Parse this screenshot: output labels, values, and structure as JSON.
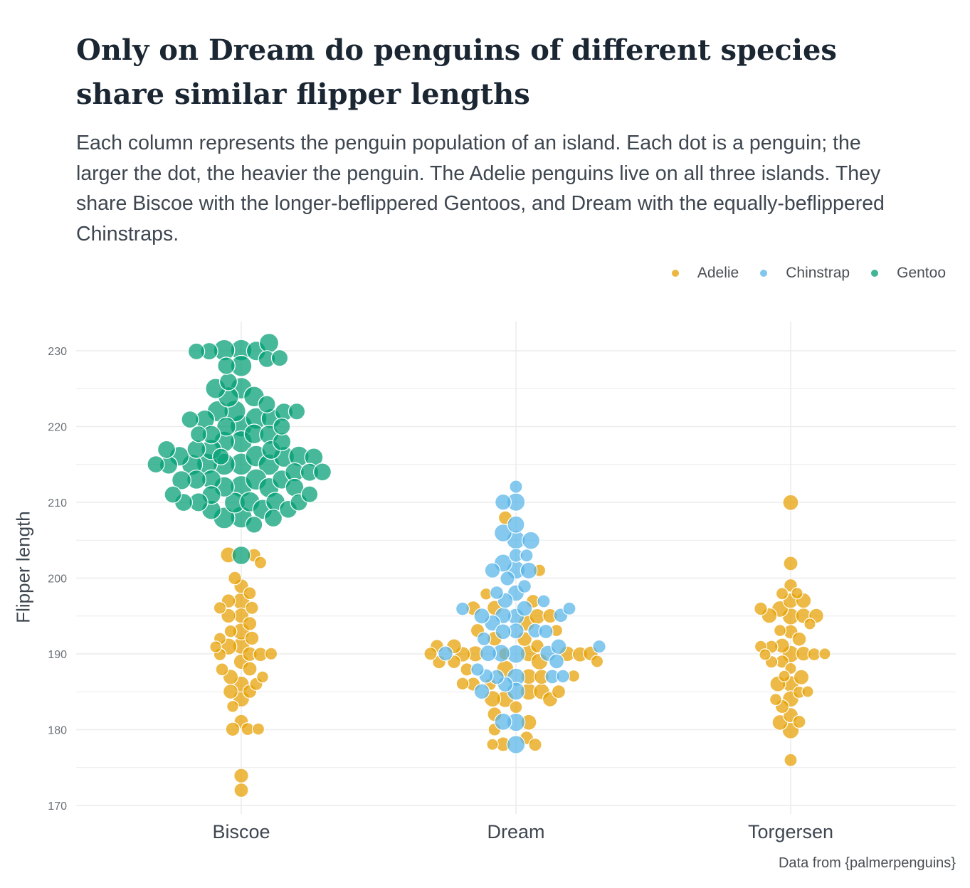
{
  "chart_data": {
    "type": "scatter",
    "title": "Only on Dream do penguins of different species share similar flipper lengths",
    "subtitle": "Each column represents the penguin population of an island. Each dot is a penguin; the larger the dot, the heavier the penguin. The Adelie penguins live on all three islands. They share Biscoe with the longer-beflippered Gentoos, and Dream with the equally-beflippered Chinstraps.",
    "ylabel": "Flipper length",
    "xlabel": "",
    "caption": "Data from {palmerpenguins}",
    "categories": [
      "Biscoe",
      "Dream",
      "Torgersen"
    ],
    "ylim": [
      169,
      234
    ],
    "yticks": [
      170,
      180,
      190,
      200,
      210,
      220,
      230
    ],
    "grid": true,
    "legend_position": "top-right",
    "series": [
      {
        "name": "Adelie",
        "color": "#E69F00",
        "points": [
          {
            "island": "Biscoe",
            "values": [
              172,
              174,
              180,
              180,
              180,
              181,
              183,
              184,
              185,
              185,
              186,
              186,
              187,
              187,
              188,
              188,
              189,
              190,
              190,
              190,
              190,
              191,
              191,
              191,
              192,
              192,
              193,
              193,
              194,
              195,
              195,
              196,
              196,
              197,
              197,
              198,
              199,
              200,
              202,
              203,
              203
            ]
          },
          {
            "island": "Dream",
            "values": [
              178,
              178,
              178,
              179,
              180,
              181,
              182,
              183,
              184,
              184,
              184,
              185,
              185,
              185,
              186,
              186,
              186,
              187,
              187,
              187,
              188,
              188,
              189,
              189,
              189,
              189,
              190,
              190,
              190,
              190,
              190,
              190,
              190,
              190,
              191,
              191,
              191,
              192,
              192,
              193,
              193,
              194,
              195,
              195,
              196,
              196,
              197,
              198,
              201,
              208
            ]
          },
          {
            "island": "Torgersen",
            "values": [
              176,
              180,
              181,
              181,
              182,
              183,
              184,
              184,
              185,
              185,
              186,
              186,
              187,
              187,
              188,
              189,
              189,
              190,
              190,
              190,
              190,
              190,
              191,
              191,
              191,
              192,
              193,
              193,
              194,
              195,
              195,
              195,
              195,
              196,
              196,
              197,
              197,
              198,
              198,
              199,
              202,
              210
            ]
          }
        ]
      },
      {
        "name": "Chinstrap",
        "color": "#56B4E9",
        "points": [
          {
            "island": "Dream",
            "values": [
              178,
              181,
              181,
              185,
              185,
              186,
              187,
              187,
              187,
              187,
              187,
              188,
              189,
              190,
              190,
              190,
              190,
              190,
              191,
              191,
              192,
              193,
              193,
              193,
              193,
              194,
              195,
              195,
              195,
              195,
              196,
              196,
              196,
              197,
              197,
              198,
              198,
              199,
              200,
              201,
              201,
              201,
              202,
              203,
              203,
              205,
              205,
              206,
              207,
              210,
              210,
              212
            ]
          }
        ]
      },
      {
        "name": "Gentoo",
        "color": "#009E73",
        "points": [
          {
            "island": "Biscoe",
            "values": [
              203,
              207,
              208,
              208,
              208,
              209,
              209,
              209,
              210,
              210,
              210,
              210,
              210,
              210,
              211,
              211,
              211,
              212,
              212,
              212,
              212,
              213,
              213,
              213,
              213,
              213,
              214,
              214,
              214,
              215,
              215,
              215,
              215,
              215,
              215,
              215,
              216,
              216,
              216,
              216,
              216,
              216,
              217,
              217,
              217,
              217,
              218,
              218,
              218,
              219,
              219,
              219,
              219,
              220,
              220,
              220,
              221,
              221,
              221,
              221,
              222,
              222,
              222,
              222,
              223,
              224,
              224,
              225,
              225,
              226,
              228,
              228,
              229,
              229,
              230,
              230,
              230,
              230,
              230,
              231
            ]
          }
        ]
      }
    ]
  }
}
